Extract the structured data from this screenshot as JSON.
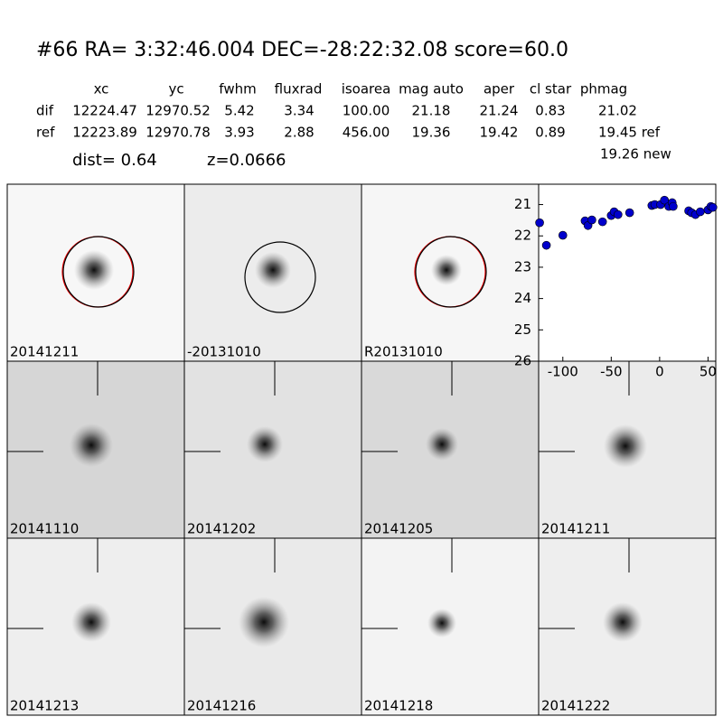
{
  "header": {
    "title": "#66   RA= 3:32:46.004 DEC=-28:22:32.08       score=60.0"
  },
  "table": {
    "columns": [
      "xc",
      "yc",
      "fwhm",
      "fluxrad",
      "isoarea",
      "mag auto",
      "aper",
      "cl star",
      "phmag"
    ],
    "rows": [
      [
        "dif",
        "12224.47",
        "12970.52",
        "5.42",
        "3.34",
        "100.00",
        "21.18",
        "21.24",
        "0.83",
        "21.02"
      ],
      [
        "ref",
        "12223.89",
        "12970.78",
        "3.93",
        "2.88",
        "456.00",
        "19.36",
        "19.42",
        "0.89",
        "19.45 ref"
      ]
    ],
    "extra": "19.26 new"
  },
  "info": {
    "dist": "dist=  0.64",
    "z": "z=0.0666"
  },
  "stamps": [
    {
      "label": "20141211"
    },
    {
      "label": "-20131010"
    },
    {
      "label": "R20131010"
    },
    {
      "label": "20141110"
    },
    {
      "label": "20141202"
    },
    {
      "label": "20141205"
    },
    {
      "label": "20141211",
      "label_color": "#ff0000"
    },
    {
      "label": "20141213"
    },
    {
      "label": "20141216"
    },
    {
      "label": "20141218"
    },
    {
      "label": "20141222"
    }
  ],
  "chart_data": {
    "type": "scatter",
    "color": "#0000cc",
    "x": [
      -124,
      -117,
      -100,
      -77,
      -74,
      -70,
      -59,
      -50,
      -47,
      -43,
      -31,
      -8,
      -5,
      1,
      5,
      9.5,
      13,
      14,
      30,
      33,
      37,
      42,
      50,
      53,
      55
    ],
    "values": [
      21.58,
      22.3,
      21.98,
      21.52,
      21.67,
      21.49,
      21.55,
      21.35,
      21.23,
      21.32,
      21.26,
      21.03,
      21.0,
      21.0,
      20.86,
      21.06,
      20.94,
      21.06,
      21.2,
      21.26,
      21.32,
      21.23,
      21.17,
      21.06,
      21.09
    ],
    "xlim": [
      -125,
      58
    ],
    "xticks": [
      -100,
      -50,
      0,
      50
    ],
    "ylim": [
      26,
      20.35
    ],
    "yticks": [
      21,
      22,
      23,
      24,
      25,
      26
    ]
  }
}
